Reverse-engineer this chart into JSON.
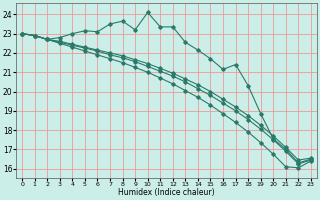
{
  "xlabel": "Humidex (Indice chaleur)",
  "bg_color": "#cceee8",
  "grid_color": "#ee9999",
  "line_color": "#2a7a6a",
  "xlim": [
    -0.5,
    23.5
  ],
  "ylim": [
    15.5,
    24.6
  ],
  "xticks": [
    0,
    1,
    2,
    3,
    4,
    5,
    6,
    7,
    8,
    9,
    10,
    11,
    12,
    13,
    14,
    15,
    16,
    17,
    18,
    19,
    20,
    21,
    22,
    23
  ],
  "yticks": [
    16,
    17,
    18,
    19,
    20,
    21,
    22,
    23,
    24
  ],
  "series": [
    {
      "x": [
        0,
        1,
        2,
        3,
        4,
        5,
        6,
        7,
        8,
        9,
        10,
        11,
        12,
        13,
        14,
        15,
        16,
        17,
        18,
        19,
        20,
        21,
        22,
        23
      ],
      "y": [
        23.0,
        22.9,
        22.7,
        22.8,
        23.0,
        23.15,
        23.1,
        23.5,
        23.65,
        23.2,
        24.1,
        23.35,
        23.35,
        22.55,
        22.15,
        21.7,
        21.15,
        21.4,
        20.3,
        18.85,
        17.55,
        17.0,
        16.3,
        16.5
      ]
    },
    {
      "x": [
        0,
        1,
        2,
        3,
        4,
        5,
        6,
        7,
        8,
        9,
        10,
        11,
        12,
        13,
        14,
        15,
        16,
        17,
        18,
        19,
        20,
        21,
        22,
        23
      ],
      "y": [
        23.0,
        22.9,
        22.7,
        22.6,
        22.45,
        22.3,
        22.15,
        22.0,
        21.85,
        21.65,
        21.45,
        21.2,
        20.95,
        20.65,
        20.35,
        20.0,
        19.6,
        19.2,
        18.75,
        18.25,
        17.7,
        17.1,
        16.45,
        16.55
      ]
    },
    {
      "x": [
        0,
        1,
        2,
        3,
        4,
        5,
        6,
        7,
        8,
        9,
        10,
        11,
        12,
        13,
        14,
        15,
        16,
        17,
        18,
        19,
        20,
        21,
        22,
        23
      ],
      "y": [
        23.0,
        22.9,
        22.7,
        22.55,
        22.4,
        22.25,
        22.1,
        21.9,
        21.75,
        21.55,
        21.3,
        21.05,
        20.8,
        20.5,
        20.15,
        19.8,
        19.4,
        19.0,
        18.55,
        18.05,
        17.5,
        16.9,
        16.25,
        16.45
      ]
    },
    {
      "x": [
        0,
        1,
        2,
        3,
        4,
        5,
        6,
        7,
        8,
        9,
        10,
        11,
        12,
        13,
        14,
        15,
        16,
        17,
        18,
        19,
        20,
        21,
        22,
        23
      ],
      "y": [
        23.0,
        22.9,
        22.7,
        22.5,
        22.3,
        22.1,
        21.9,
        21.7,
        21.5,
        21.25,
        21.0,
        20.7,
        20.4,
        20.05,
        19.7,
        19.3,
        18.85,
        18.4,
        17.9,
        17.35,
        16.75,
        16.1,
        16.05,
        16.4
      ]
    }
  ]
}
